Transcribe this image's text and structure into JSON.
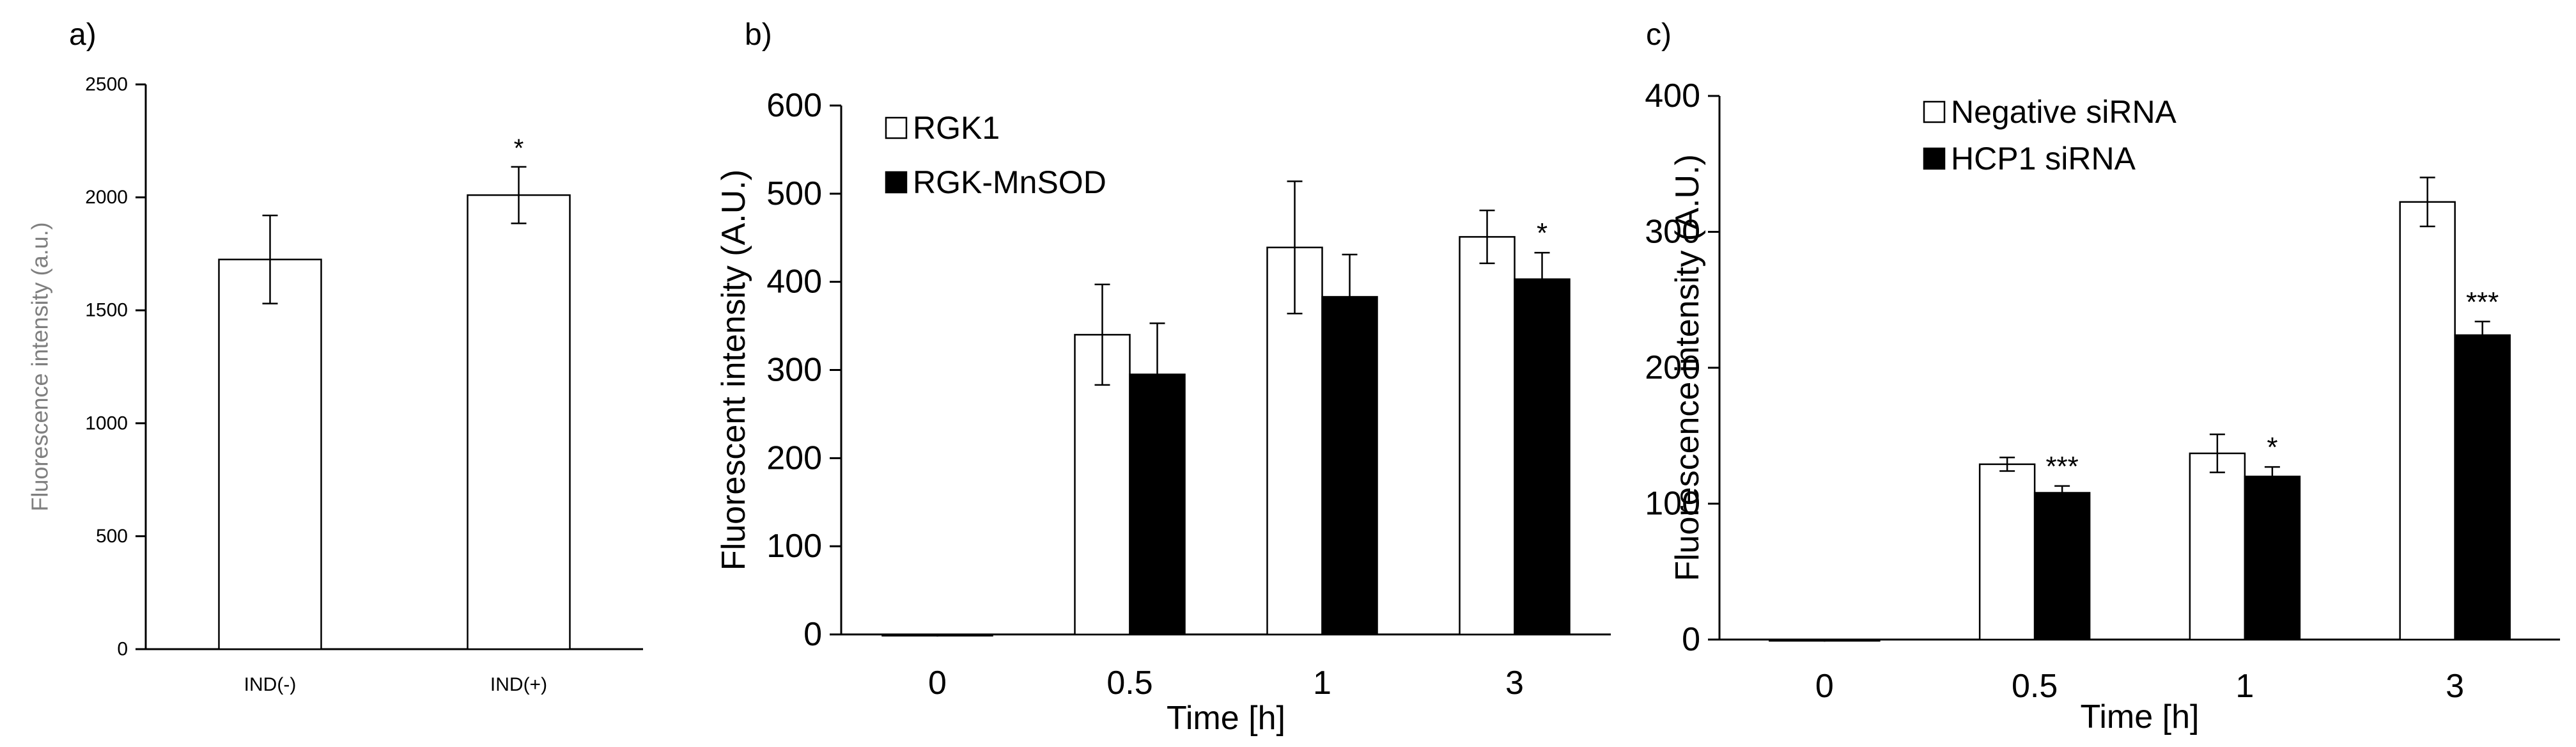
{
  "chart_data": [
    {
      "panel_label": "a)",
      "type": "bar",
      "categories": [
        "IND(-)",
        "IND(+)"
      ],
      "series": [
        {
          "fill": "#ffffff",
          "values": [
            1725,
            2010
          ],
          "errors": [
            195,
            125
          ],
          "significance": [
            "",
            "*"
          ]
        }
      ],
      "xlabel": "",
      "ylabel": "Fluorescence intensity (a.u.)",
      "ylim": [
        0,
        2500
      ],
      "yticks": [
        "0",
        "500",
        "1000",
        "1500",
        "2000",
        "2500"
      ],
      "grid": false
    },
    {
      "panel_label": "b)",
      "type": "bar",
      "categories": [
        "0",
        "0.5",
        "1",
        "3"
      ],
      "series": [
        {
          "name": "RGK1",
          "fill": "#ffffff",
          "values": [
            0,
            340,
            439,
            451
          ],
          "errors": [
            0,
            57,
            75,
            30
          ],
          "significance": [
            "",
            "",
            "",
            ""
          ]
        },
        {
          "name": "RGK-MnSOD",
          "fill": "#000000",
          "values": [
            0,
            295,
            383,
            403
          ],
          "errors": [
            0,
            58,
            48,
            30
          ],
          "significance": [
            "",
            "",
            "",
            "*"
          ]
        }
      ],
      "xlabel": "Time [h]",
      "ylabel": "Fluorescent intensity (A.U.)",
      "ylim": [
        0,
        600
      ],
      "yticks": [
        "0",
        "100",
        "200",
        "300",
        "400",
        "500",
        "600"
      ],
      "legend": "top-left",
      "grid": false
    },
    {
      "panel_label": "c)",
      "type": "bar",
      "categories": [
        "0",
        "0.5",
        "1",
        "3"
      ],
      "series": [
        {
          "name": "Negative siRNA",
          "fill": "#ffffff",
          "values": [
            0,
            129,
            137,
            322
          ],
          "errors": [
            0,
            5,
            14,
            18
          ],
          "significance": [
            "",
            "",
            "",
            ""
          ]
        },
        {
          "name": "HCP1 siRNA",
          "fill": "#000000",
          "values": [
            0,
            108,
            120,
            224
          ],
          "errors": [
            0,
            5,
            7,
            10
          ],
          "significance": [
            "",
            "***",
            "*",
            "***"
          ]
        }
      ],
      "xlabel": "Time [h]",
      "ylabel": "Fluorescence intensity (A.U.)",
      "ylim": [
        0,
        400
      ],
      "yticks": [
        "0",
        "100",
        "200",
        "300",
        "400"
      ],
      "legend": "top-left",
      "grid": false
    }
  ]
}
